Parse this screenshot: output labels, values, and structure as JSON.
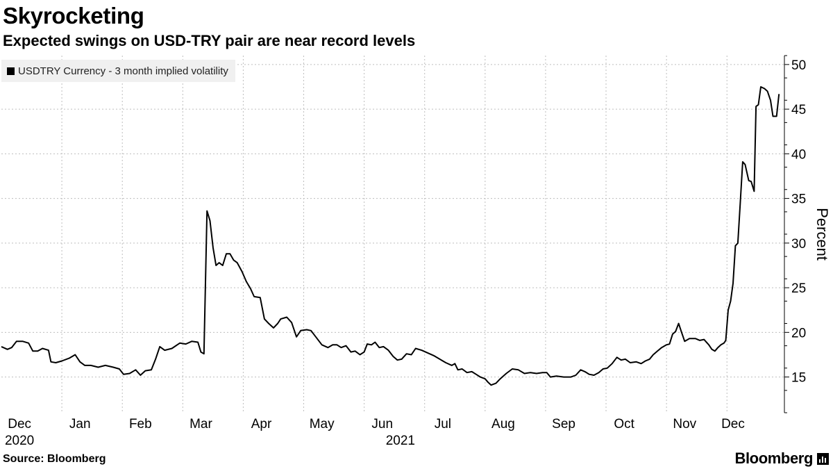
{
  "header": {
    "title": "Skyrocketing",
    "subtitle": "Expected swings on USD-TRY pair are near record levels"
  },
  "footer": {
    "source": "Source: Bloomberg",
    "brand": "Bloomberg"
  },
  "colors": {
    "line": "#000000",
    "grid": "#bdbdbd",
    "legend_bg": "#f0f0f0"
  },
  "chart_data": {
    "type": "line",
    "title": "Skyrocketing",
    "subtitle": "Expected swings on USD-TRY pair are near record levels",
    "xlabel": "",
    "ylabel": "Percent",
    "ylim": [
      11,
      51
    ],
    "yticks": [
      15,
      20,
      25,
      30,
      35,
      40,
      45,
      50
    ],
    "xlim": [
      0,
      12.3
    ],
    "grid": true,
    "legend_position": "top-left",
    "x_unit": "months since Dec 1, 2020",
    "xticks": [
      {
        "x": 0.3,
        "label": "Dec"
      },
      {
        "x": 1.3,
        "label": "Jan"
      },
      {
        "x": 2.3,
        "label": "Feb"
      },
      {
        "x": 3.3,
        "label": "Mar"
      },
      {
        "x": 4.3,
        "label": "Apr"
      },
      {
        "x": 5.3,
        "label": "May"
      },
      {
        "x": 6.3,
        "label": "Jun"
      },
      {
        "x": 7.3,
        "label": "Jul"
      },
      {
        "x": 8.3,
        "label": "Aug"
      },
      {
        "x": 9.3,
        "label": "Sep"
      },
      {
        "x": 10.3,
        "label": "Oct"
      },
      {
        "x": 11.3,
        "label": "Nov"
      },
      {
        "x": 12.1,
        "label": "Dec"
      }
    ],
    "year_labels": [
      {
        "x": 0.3,
        "label": "2020"
      },
      {
        "x": 6.6,
        "label": "2021"
      }
    ],
    "series": [
      {
        "name": "USDTRY Currency - 3 month implied volatility",
        "points": [
          [
            0.0,
            18.4
          ],
          [
            0.1,
            18.1
          ],
          [
            0.17,
            18.3
          ],
          [
            0.25,
            19.0
          ],
          [
            0.35,
            19.0
          ],
          [
            0.45,
            18.8
          ],
          [
            0.52,
            17.9
          ],
          [
            0.6,
            17.9
          ],
          [
            0.68,
            18.2
          ],
          [
            0.78,
            18.0
          ],
          [
            0.82,
            16.7
          ],
          [
            0.9,
            16.6
          ],
          [
            1.0,
            16.8
          ],
          [
            1.12,
            17.1
          ],
          [
            1.22,
            17.5
          ],
          [
            1.3,
            16.7
          ],
          [
            1.38,
            16.3
          ],
          [
            1.48,
            16.3
          ],
          [
            1.6,
            16.1
          ],
          [
            1.72,
            16.3
          ],
          [
            1.85,
            16.1
          ],
          [
            1.95,
            15.9
          ],
          [
            2.02,
            15.3
          ],
          [
            2.12,
            15.4
          ],
          [
            2.22,
            15.8
          ],
          [
            2.3,
            15.2
          ],
          [
            2.38,
            15.7
          ],
          [
            2.48,
            15.8
          ],
          [
            2.55,
            17.0
          ],
          [
            2.62,
            18.4
          ],
          [
            2.7,
            18.0
          ],
          [
            2.82,
            18.2
          ],
          [
            2.95,
            18.8
          ],
          [
            3.05,
            18.7
          ],
          [
            3.15,
            19.0
          ],
          [
            3.25,
            18.9
          ],
          [
            3.3,
            17.8
          ],
          [
            3.35,
            17.6
          ],
          [
            3.4,
            33.6
          ],
          [
            3.45,
            32.5
          ],
          [
            3.5,
            29.5
          ],
          [
            3.55,
            27.5
          ],
          [
            3.6,
            27.8
          ],
          [
            3.66,
            27.5
          ],
          [
            3.72,
            28.8
          ],
          [
            3.78,
            28.8
          ],
          [
            3.84,
            28.1
          ],
          [
            3.9,
            27.8
          ],
          [
            3.98,
            26.8
          ],
          [
            4.05,
            25.7
          ],
          [
            4.12,
            24.9
          ],
          [
            4.18,
            24.0
          ],
          [
            4.28,
            23.9
          ],
          [
            4.35,
            21.5
          ],
          [
            4.42,
            21.0
          ],
          [
            4.5,
            20.5
          ],
          [
            4.57,
            21.0
          ],
          [
            4.62,
            21.5
          ],
          [
            4.72,
            21.7
          ],
          [
            4.8,
            21.1
          ],
          [
            4.88,
            19.5
          ],
          [
            4.95,
            20.2
          ],
          [
            5.05,
            20.3
          ],
          [
            5.12,
            20.2
          ],
          [
            5.2,
            19.5
          ],
          [
            5.3,
            18.6
          ],
          [
            5.4,
            18.3
          ],
          [
            5.48,
            18.6
          ],
          [
            5.55,
            18.6
          ],
          [
            5.62,
            18.3
          ],
          [
            5.7,
            18.5
          ],
          [
            5.78,
            17.8
          ],
          [
            5.85,
            17.9
          ],
          [
            5.93,
            17.5
          ],
          [
            6.0,
            17.8
          ],
          [
            6.05,
            18.7
          ],
          [
            6.12,
            18.6
          ],
          [
            6.18,
            18.9
          ],
          [
            6.25,
            18.3
          ],
          [
            6.32,
            18.4
          ],
          [
            6.4,
            18.0
          ],
          [
            6.48,
            17.3
          ],
          [
            6.55,
            16.9
          ],
          [
            6.62,
            17.0
          ],
          [
            6.7,
            17.6
          ],
          [
            6.78,
            17.5
          ],
          [
            6.85,
            18.2
          ],
          [
            6.95,
            18.0
          ],
          [
            7.05,
            17.7
          ],
          [
            7.15,
            17.4
          ],
          [
            7.25,
            17.0
          ],
          [
            7.35,
            16.6
          ],
          [
            7.45,
            16.3
          ],
          [
            7.5,
            16.5
          ],
          [
            7.55,
            15.8
          ],
          [
            7.62,
            15.9
          ],
          [
            7.7,
            15.5
          ],
          [
            7.78,
            15.6
          ],
          [
            7.85,
            15.3
          ],
          [
            7.92,
            15.0
          ],
          [
            8.0,
            14.8
          ],
          [
            8.05,
            14.4
          ],
          [
            8.1,
            14.1
          ],
          [
            8.18,
            14.3
          ],
          [
            8.25,
            14.8
          ],
          [
            8.35,
            15.4
          ],
          [
            8.45,
            15.9
          ],
          [
            8.55,
            15.8
          ],
          [
            8.65,
            15.4
          ],
          [
            8.75,
            15.5
          ],
          [
            8.85,
            15.4
          ],
          [
            8.95,
            15.5
          ],
          [
            9.02,
            15.5
          ],
          [
            9.08,
            15.0
          ],
          [
            9.18,
            15.1
          ],
          [
            9.3,
            15.0
          ],
          [
            9.42,
            15.0
          ],
          [
            9.5,
            15.2
          ],
          [
            9.58,
            15.8
          ],
          [
            9.65,
            15.6
          ],
          [
            9.72,
            15.3
          ],
          [
            9.8,
            15.2
          ],
          [
            9.88,
            15.5
          ],
          [
            9.95,
            15.9
          ],
          [
            10.02,
            16.0
          ],
          [
            10.1,
            16.5
          ],
          [
            10.18,
            17.2
          ],
          [
            10.25,
            16.9
          ],
          [
            10.32,
            17.0
          ],
          [
            10.4,
            16.6
          ],
          [
            10.5,
            16.7
          ],
          [
            10.58,
            16.5
          ],
          [
            10.65,
            16.8
          ],
          [
            10.72,
            17.0
          ],
          [
            10.78,
            17.5
          ],
          [
            10.85,
            17.9
          ],
          [
            10.92,
            18.3
          ],
          [
            11.0,
            18.6
          ],
          [
            11.05,
            18.7
          ],
          [
            11.1,
            19.8
          ],
          [
            11.15,
            20.1
          ],
          [
            11.2,
            21.0
          ],
          [
            11.25,
            20.0
          ],
          [
            11.3,
            19.0
          ],
          [
            11.38,
            19.3
          ],
          [
            11.48,
            19.3
          ],
          [
            11.55,
            19.1
          ],
          [
            11.62,
            19.2
          ],
          [
            11.7,
            18.6
          ],
          [
            11.75,
            18.1
          ],
          [
            11.8,
            17.9
          ],
          [
            11.85,
            18.3
          ],
          [
            11.9,
            18.6
          ],
          [
            11.95,
            18.8
          ],
          [
            11.98,
            19.1
          ],
          [
            12.02,
            22.5
          ],
          [
            12.06,
            23.5
          ],
          [
            12.1,
            25.5
          ],
          [
            12.14,
            29.7
          ],
          [
            12.18,
            30.0
          ],
          [
            12.22,
            34.5
          ],
          [
            12.26,
            39.1
          ],
          [
            12.3,
            38.8
          ],
          [
            12.36,
            37.0
          ],
          [
            12.4,
            36.9
          ],
          [
            12.45,
            35.8
          ],
          [
            12.48,
            45.3
          ],
          [
            12.52,
            45.5
          ],
          [
            12.56,
            47.5
          ],
          [
            12.62,
            47.3
          ],
          [
            12.67,
            47.0
          ],
          [
            12.72,
            46.0
          ],
          [
            12.76,
            44.2
          ],
          [
            12.82,
            44.2
          ],
          [
            12.86,
            46.7
          ]
        ]
      }
    ]
  }
}
